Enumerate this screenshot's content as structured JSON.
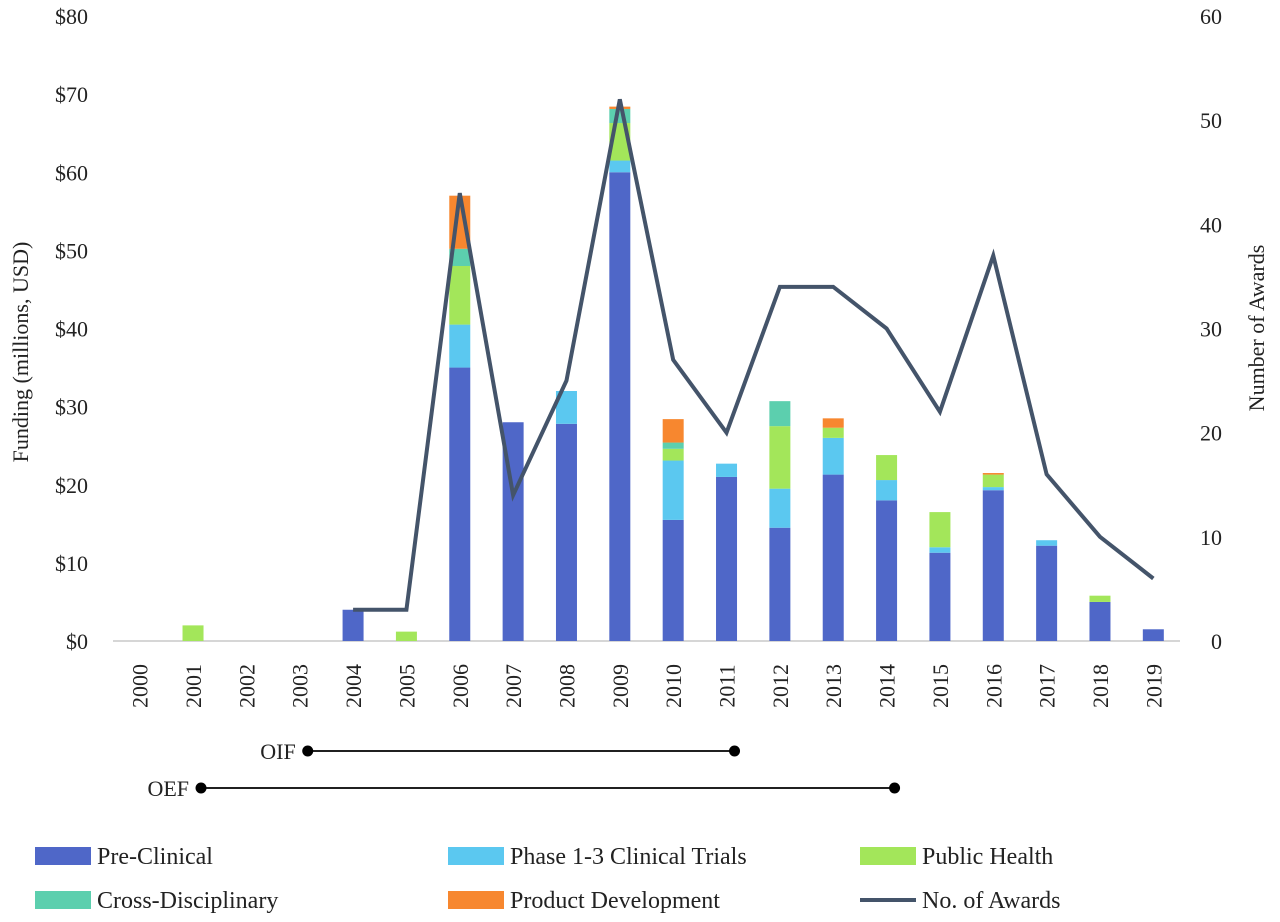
{
  "chart_data": {
    "type": "bar",
    "stacked": true,
    "categories": [
      "2000",
      "2001",
      "2002",
      "2003",
      "2004",
      "2005",
      "2006",
      "2007",
      "2008",
      "2009",
      "2010",
      "2011",
      "2012",
      "2013",
      "2014",
      "2015",
      "2016",
      "2017",
      "2018",
      "2019"
    ],
    "series": [
      {
        "name": "Pre-Clinical",
        "color": "#4F67C8",
        "values": [
          0,
          0,
          0,
          0,
          4.0,
          0,
          35.0,
          28.0,
          27.8,
          60.0,
          15.5,
          21.0,
          14.5,
          21.3,
          18.0,
          11.3,
          19.3,
          12.2,
          5.0,
          1.5
        ]
      },
      {
        "name": "Phase 1-3 Clinical Trials",
        "color": "#5BC8F0",
        "values": [
          0,
          0,
          0,
          0,
          0,
          0,
          5.5,
          0,
          4.2,
          1.5,
          7.6,
          1.7,
          5.0,
          4.7,
          2.6,
          0.7,
          0.4,
          0.7,
          0,
          0
        ]
      },
      {
        "name": "Public Health",
        "color": "#A3E65A",
        "values": [
          0,
          2.0,
          0,
          0,
          0,
          1.2,
          7.5,
          0,
          0,
          4.8,
          1.5,
          0,
          8.0,
          1.3,
          3.2,
          4.5,
          1.6,
          0,
          0.8,
          0
        ]
      },
      {
        "name": "Cross-Disciplinary",
        "color": "#5CCFAE",
        "values": [
          0,
          0,
          0,
          0,
          0,
          0,
          2.2,
          0,
          0,
          1.8,
          0.8,
          0,
          3.2,
          0,
          0,
          0,
          0,
          0,
          0,
          0
        ]
      },
      {
        "name": "Product Development",
        "color": "#F7872F",
        "values": [
          0,
          0,
          0,
          0,
          0,
          0,
          6.8,
          0,
          0,
          0.3,
          3.0,
          0,
          0,
          1.2,
          0,
          0,
          0.2,
          0,
          0,
          0
        ]
      }
    ],
    "line_series": {
      "name": "No. of Awards",
      "color": "#44546A",
      "axis": "right",
      "values": [
        null,
        null,
        null,
        null,
        3,
        3,
        43,
        14,
        25,
        52,
        27,
        20,
        34,
        34,
        30,
        22,
        37,
        16,
        10,
        6
      ]
    },
    "ylabel": "Funding (millions, USD)",
    "y2label": "Number of Awards",
    "ylim": [
      0,
      80
    ],
    "y2lim": [
      0,
      60
    ],
    "yticks": [
      "$0",
      "$10",
      "$20",
      "$30",
      "$40",
      "$50",
      "$60",
      "$70",
      "$80"
    ],
    "y2ticks": [
      "0",
      "10",
      "20",
      "30",
      "40",
      "50",
      "60"
    ],
    "grid": false,
    "legend_position": "bottom",
    "periods": [
      {
        "label": "OIF",
        "start": "2003",
        "end": "2011"
      },
      {
        "label": "OEF",
        "start": "2001",
        "end": "2014"
      }
    ]
  }
}
